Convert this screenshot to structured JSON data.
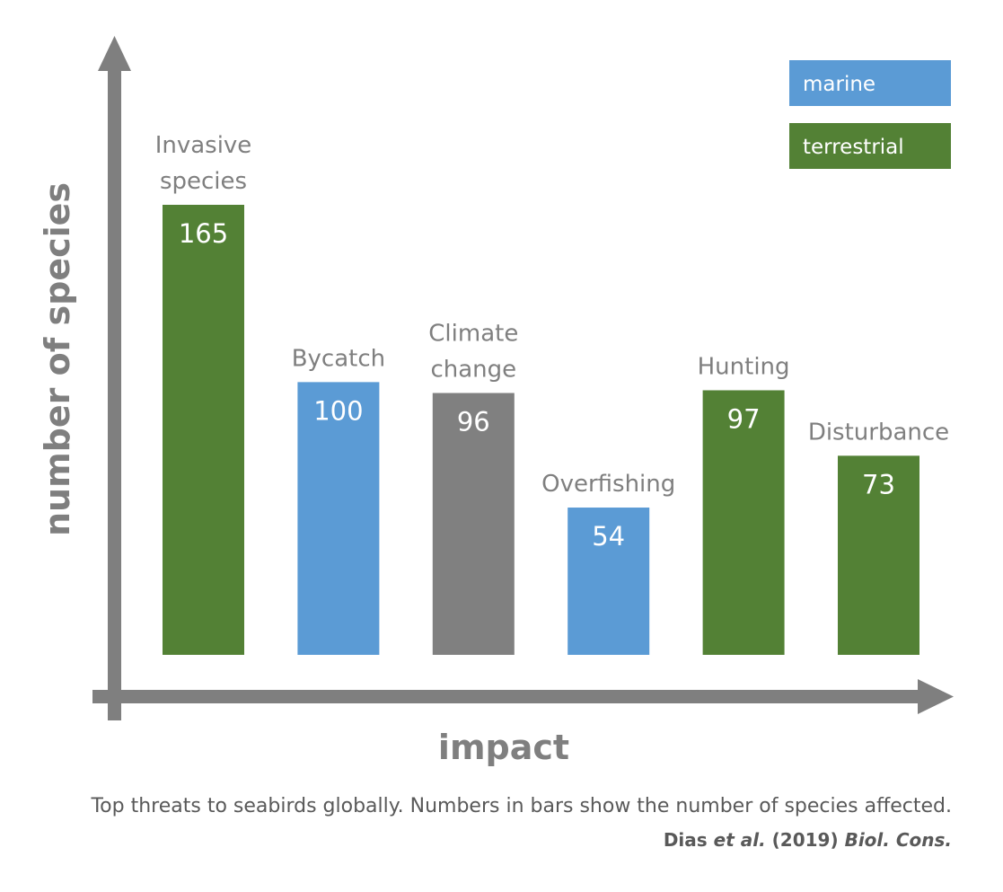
{
  "chart_data": {
    "type": "bar",
    "xlabel": "impact",
    "ylabel": "number of species",
    "legend_position": "top-right",
    "legend": [
      {
        "name": "marine",
        "color": "#5b9bd5"
      },
      {
        "name": "terrestrial",
        "color": "#538135"
      }
    ],
    "categories": [
      {
        "label_lines": [
          "Invasive",
          "species"
        ],
        "value": 165,
        "group": "terrestrial"
      },
      {
        "label_lines": [
          "Bycatch"
        ],
        "value": 100,
        "group": "marine"
      },
      {
        "label_lines": [
          "Climate",
          "change"
        ],
        "value": 96,
        "group": "other"
      },
      {
        "label_lines": [
          "Overfishing"
        ],
        "value": 54,
        "group": "marine"
      },
      {
        "label_lines": [
          "Hunting"
        ],
        "value": 97,
        "group": "terrestrial"
      },
      {
        "label_lines": [
          "Disturbance"
        ],
        "value": 73,
        "group": "terrestrial"
      }
    ],
    "colors": {
      "marine": "#5b9bd5",
      "terrestrial": "#538135",
      "other": "#808080",
      "axis": "#7f7f7f",
      "label": "#7f7f7f"
    },
    "ylim": [
      0,
      165
    ]
  },
  "caption": "Top threats to seabirds globally. Numbers in bars show the number of species affected.",
  "citation": {
    "authors": "Dias",
    "etal": "et al.",
    "year": "(2019)",
    "journal": "Biol. Cons."
  }
}
